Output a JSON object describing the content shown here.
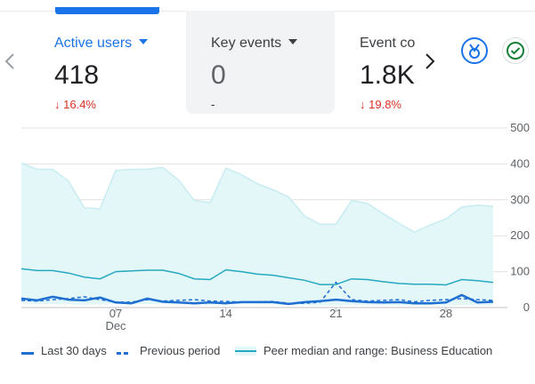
{
  "cards": [
    {
      "label": "Active users",
      "value": "418",
      "change": "16.4%",
      "direction": "down",
      "selected": false
    },
    {
      "label": "Key events",
      "value": "0",
      "change": "-",
      "direction": "none",
      "selected": true
    },
    {
      "label": "Event co",
      "value": "1.8K",
      "change": "19.8%",
      "direction": "down",
      "selected": false
    }
  ],
  "nav": {
    "prev_icon": "chevron-left-icon",
    "next_icon": "chevron-right-icon"
  },
  "badges": {
    "insights_icon": "insights-medal-icon",
    "check_icon": "check-circle-icon"
  },
  "colors": {
    "accent": "#1a73e8",
    "series": "#1f6fd1",
    "peer": "#26a9c0",
    "peer_fill": "#e3f6f8",
    "down": "#d93025"
  },
  "legend": {
    "current": "Last 30 days",
    "previous": "Previous period",
    "peer": "Peer median and range: Business Education"
  },
  "chart_data": {
    "type": "line",
    "x": [
      1,
      2,
      3,
      4,
      5,
      6,
      7,
      8,
      9,
      10,
      11,
      12,
      13,
      14,
      15,
      16,
      17,
      18,
      19,
      20,
      21,
      22,
      23,
      24,
      25,
      26,
      27,
      28,
      29,
      30,
      31
    ],
    "x_ticks": [
      {
        "x": 7,
        "label": "07",
        "sub": "Dec"
      },
      {
        "x": 14,
        "label": "14"
      },
      {
        "x": 21,
        "label": "21"
      },
      {
        "x": 28,
        "label": "28"
      }
    ],
    "ylim": [
      0,
      500
    ],
    "y_ticks": [
      0,
      100,
      200,
      300,
      400,
      500
    ],
    "grid": true,
    "y_axis_side": "right",
    "legend_position": "bottom",
    "series": [
      {
        "name": "Last 30 days",
        "style": "solid",
        "values": [
          25,
          20,
          30,
          22,
          20,
          28,
          14,
          12,
          25,
          16,
          14,
          12,
          14,
          12,
          15,
          15,
          15,
          10,
          15,
          18,
          22,
          18,
          15,
          14,
          15,
          12,
          12,
          14,
          35,
          14,
          16
        ]
      },
      {
        "name": "Previous period",
        "style": "dashed",
        "values": [
          20,
          18,
          22,
          25,
          30,
          22,
          15,
          15,
          22,
          18,
          20,
          22,
          18,
          17,
          15,
          16,
          17,
          12,
          12,
          15,
          70,
          22,
          18,
          20,
          22,
          16,
          20,
          22,
          25,
          22,
          20
        ]
      },
      {
        "name": "Peer median and range: Business Education",
        "style": "band",
        "median": [
          108,
          103,
          103,
          96,
          85,
          80,
          100,
          102,
          104,
          104,
          95,
          80,
          78,
          105,
          100,
          93,
          90,
          83,
          76,
          64,
          64,
          80,
          78,
          72,
          67,
          65,
          65,
          63,
          78,
          75,
          70
        ],
        "upper": [
          402,
          385,
          385,
          352,
          278,
          275,
          382,
          385,
          385,
          390,
          355,
          298,
          292,
          388,
          370,
          345,
          328,
          308,
          255,
          232,
          232,
          298,
          290,
          262,
          235,
          210,
          230,
          247,
          280,
          285,
          282
        ],
        "lower": [
          12,
          10,
          10,
          9,
          8,
          8,
          10,
          10,
          10,
          10,
          9,
          8,
          8,
          10,
          9,
          9,
          8,
          8,
          7,
          6,
          6,
          8,
          7,
          7,
          6,
          6,
          6,
          6,
          7,
          7,
          7
        ]
      }
    ]
  }
}
